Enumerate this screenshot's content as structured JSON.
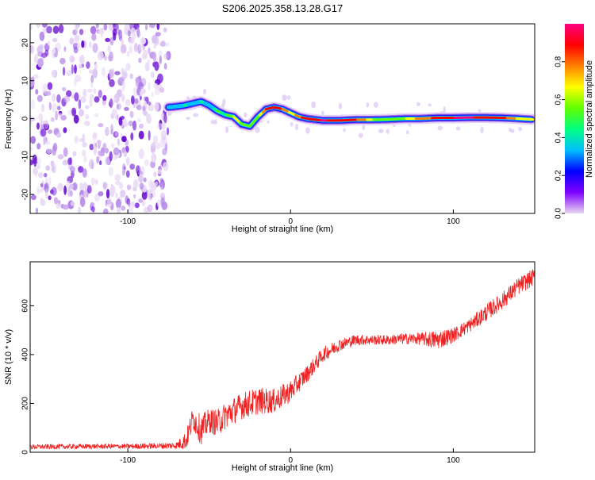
{
  "figure_title": "S206.2025.358.13.28.G17",
  "chart_data": [
    {
      "type": "heatmap",
      "title": "S206.2025.358.13.28.G17",
      "xlabel": "Height of straight line (km)",
      "ylabel": "Frequency (Hz)",
      "xlim": [
        -160,
        150
      ],
      "ylim": [
        -25,
        25
      ],
      "x_ticks": [
        -100,
        0,
        100
      ],
      "x_tick_labels": [
        "-100",
        "0",
        "100"
      ],
      "y_ticks": [
        20,
        10,
        0,
        -10,
        -20
      ],
      "y_tick_labels": [
        "20",
        "10",
        "0",
        "-10",
        "-20"
      ],
      "noise_region_x": [
        -160,
        -75
      ],
      "ridge": {
        "x": [
          -75,
          -70,
          -65,
          -60,
          -55,
          -50,
          -45,
          -40,
          -35,
          -30,
          -25,
          -20,
          -15,
          -10,
          -5,
          0,
          5,
          10,
          20,
          30,
          40,
          50,
          60,
          70,
          80,
          90,
          100,
          110,
          120,
          130,
          140,
          148
        ],
        "frequency": [
          3,
          3.2,
          3.5,
          4,
          4.5,
          3.5,
          2,
          1,
          0.5,
          -1.5,
          -2,
          0.5,
          2.5,
          3,
          2.5,
          1.5,
          0.5,
          0,
          -0.5,
          -0.5,
          -0.3,
          -0.3,
          -0.2,
          0,
          0,
          0.2,
          0.2,
          0.3,
          0.3,
          0.2,
          0,
          -0.2
        ],
        "amplitude": [
          0.3,
          0.35,
          0.4,
          0.35,
          0.4,
          0.35,
          0.5,
          0.45,
          0.7,
          0.5,
          0.55,
          0.6,
          0.85,
          0.9,
          0.8,
          0.7,
          0.8,
          0.9,
          0.95,
          0.9,
          0.85,
          0.6,
          0.55,
          0.6,
          0.8,
          0.85,
          0.95,
          0.95,
          0.9,
          0.85,
          0.7,
          0.6
        ]
      },
      "colorbar": {
        "label": "Normalized spectral amplitude",
        "range": [
          0,
          1
        ],
        "ticks": [
          0.0,
          0.2,
          0.4,
          0.6,
          0.8
        ],
        "tick_labels": [
          "0.0",
          "0.2",
          "0.4",
          "0.6",
          "0.8"
        ],
        "colors": [
          "#e8d8f0",
          "#7f00ff",
          "#0000ff",
          "#00c0ff",
          "#00ff80",
          "#60ff00",
          "#ffff00",
          "#ff8000",
          "#ff0000",
          "#ff0080"
        ]
      }
    },
    {
      "type": "line",
      "xlabel": "Height of straight line (km)",
      "ylabel": "SNR (10 * v/v)",
      "xlim": [
        -160,
        150
      ],
      "ylim": [
        0,
        780
      ],
      "x_ticks": [
        -100,
        0,
        100
      ],
      "x_tick_labels": [
        "-100",
        "0",
        "100"
      ],
      "y_ticks": [
        0,
        200,
        400,
        600
      ],
      "y_tick_labels": [
        "0",
        "200",
        "400",
        "600"
      ],
      "series": [
        {
          "name": "SNR",
          "color": "#ee2222",
          "x": [
            -160,
            -140,
            -120,
            -100,
            -80,
            -70,
            -64,
            -60,
            -55,
            -50,
            -45,
            -40,
            -30,
            -20,
            -10,
            0,
            10,
            20,
            30,
            40,
            50,
            60,
            70,
            80,
            90,
            100,
            110,
            120,
            130,
            140,
            150
          ],
          "mean": [
            22,
            23,
            24,
            24,
            26,
            28,
            50,
            140,
            90,
            130,
            120,
            150,
            190,
            210,
            210,
            250,
            320,
            400,
            440,
            460,
            460,
            460,
            465,
            465,
            460,
            480,
            520,
            570,
            620,
            680,
            720
          ],
          "noise": [
            10,
            10,
            10,
            10,
            12,
            14,
            40,
            50,
            60,
            50,
            55,
            55,
            55,
            55,
            50,
            45,
            35,
            30,
            25,
            22,
            20,
            20,
            22,
            25,
            40,
            30,
            28,
            35,
            35,
            35,
            35
          ]
        }
      ]
    }
  ]
}
